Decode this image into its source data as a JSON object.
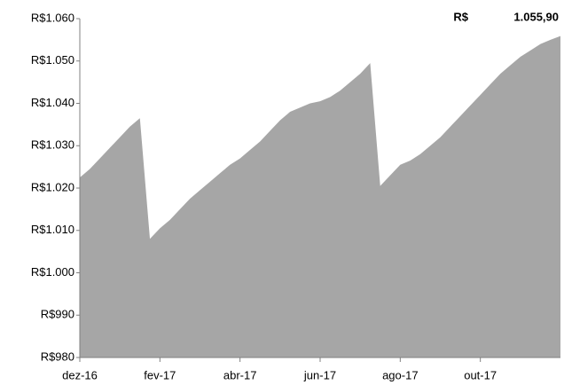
{
  "chart_data": {
    "type": "area",
    "annotation": [
      "R$",
      "1.055,90"
    ],
    "categories": [
      "dez-16",
      null,
      null,
      null,
      null,
      null,
      null,
      null,
      "fev-17",
      null,
      null,
      null,
      null,
      null,
      null,
      null,
      "abr-17",
      null,
      null,
      null,
      null,
      null,
      null,
      null,
      "jun-17",
      null,
      null,
      null,
      null,
      null,
      null,
      null,
      "ago-17",
      null,
      null,
      null,
      null,
      null,
      null,
      null,
      "out-17",
      null,
      null,
      null,
      null,
      null,
      null,
      null,
      null
    ],
    "values": [
      1022.5,
      1024.5,
      1027,
      1029.5,
      1032,
      1034.5,
      1036.5,
      1008,
      1010.5,
      1012.5,
      1015,
      1017.5,
      1019.5,
      1021.5,
      1023.5,
      1025.5,
      1027,
      1029,
      1031,
      1033.5,
      1036,
      1038,
      1039,
      1040,
      1040.5,
      1041.5,
      1043,
      1045,
      1047,
      1049.5,
      1020.5,
      1023,
      1025.5,
      1026.5,
      1028,
      1030,
      1032,
      1034.5,
      1037,
      1039.5,
      1042,
      1044.5,
      1047,
      1049,
      1051,
      1052.5,
      1054,
      1055,
      1055.9
    ],
    "color": "#a6a6a6",
    "ylim": [
      980,
      1060
    ],
    "yticks": [
      {
        "value": 980,
        "label": "R$980"
      },
      {
        "value": 990,
        "label": "R$990"
      },
      {
        "value": 1000,
        "label": "R$1.000"
      },
      {
        "value": 1010,
        "label": "R$1.010"
      },
      {
        "value": 1020,
        "label": "R$1.020"
      },
      {
        "value": 1030,
        "label": "R$1.030"
      },
      {
        "value": 1040,
        "label": "R$1.040"
      },
      {
        "value": 1050,
        "label": "R$1.050"
      },
      {
        "value": 1060,
        "label": "R$1.060"
      }
    ],
    "grid": false
  }
}
